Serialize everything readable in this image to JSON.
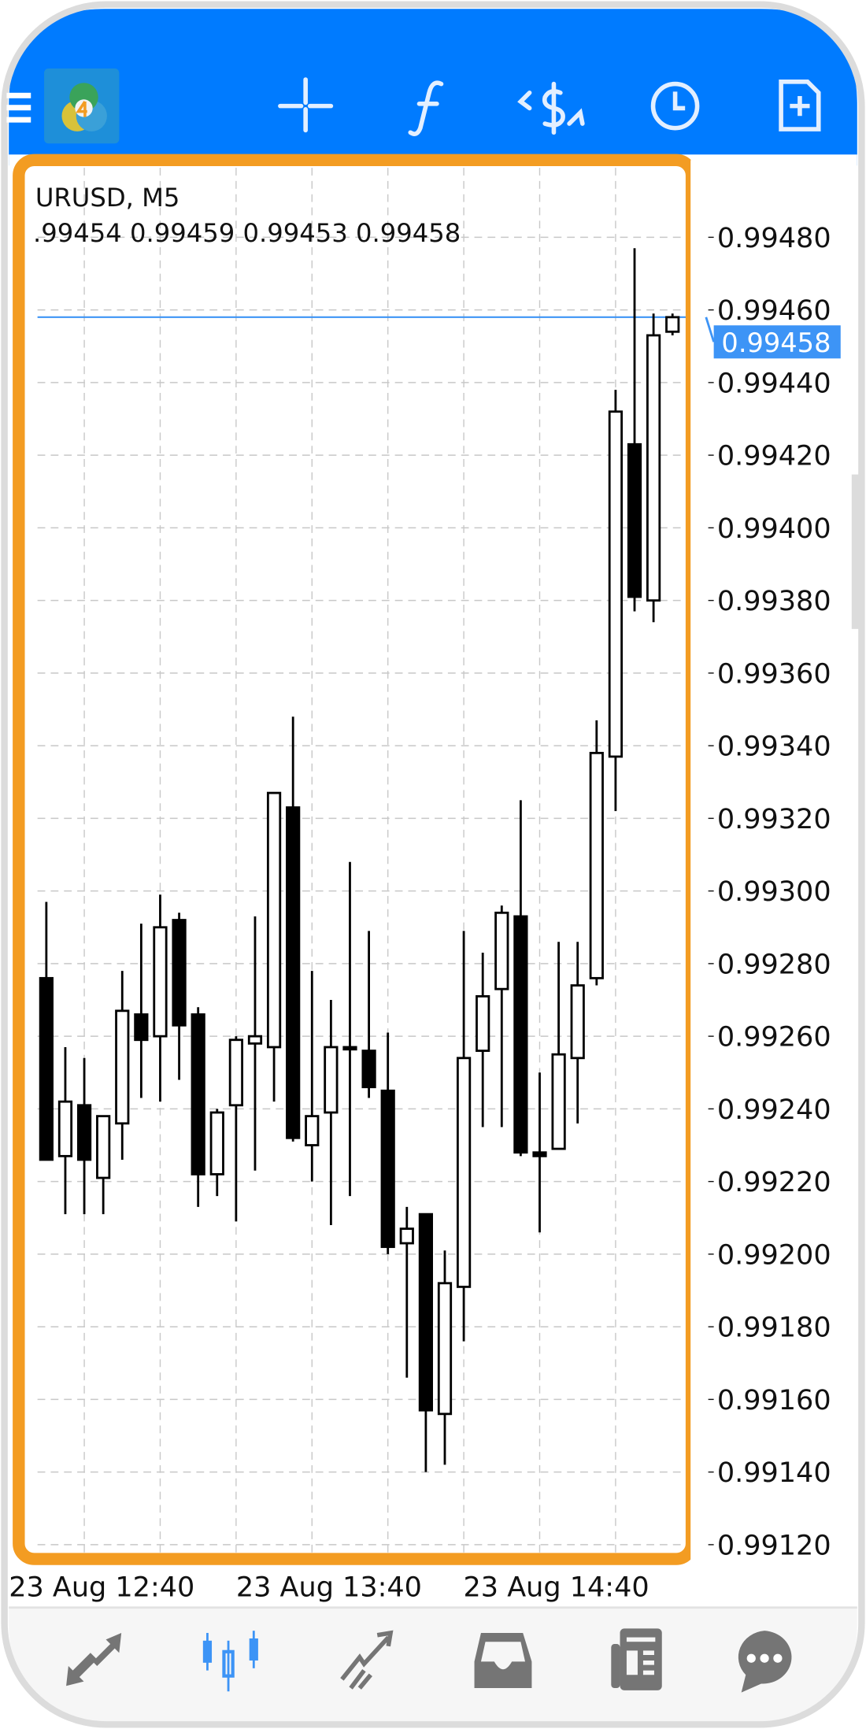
{
  "toolbar": {
    "icons": [
      "menu-icon",
      "app-logo",
      "crosshair-icon",
      "indicators-icon",
      "trade-icon",
      "timeframe-icon",
      "new-order-icon"
    ],
    "background": "#007bff"
  },
  "chart": {
    "symbol_label": "URUSD, M5",
    "ohlc_label": ".99454 0.99459 0.99453 0.99458",
    "current_price": "0.99458",
    "current_price_value": 0.99458,
    "highlight_color": "#f39c22",
    "price_line_color": "#3d94f6"
  },
  "chart_data": {
    "type": "candlestick",
    "y_ticks": [
      "0.99480",
      "0.99460",
      "0.99440",
      "0.99420",
      "0.99400",
      "0.99380",
      "0.99360",
      "0.99340",
      "0.99320",
      "0.99300",
      "0.99280",
      "0.99260",
      "0.99240",
      "0.99220",
      "0.99200",
      "0.99180",
      "0.99160",
      "0.99140",
      "0.99120"
    ],
    "ylim": [
      0.9912,
      0.9948
    ],
    "x_ticks": [
      "23 Aug 12:40",
      "23 Aug 13:40",
      "23 Aug 14:40"
    ],
    "grid": true,
    "candles": [
      {
        "o": 0.99276,
        "h": 0.99297,
        "l": 0.99226,
        "c": 0.99226
      },
      {
        "o": 0.99227,
        "h": 0.99257,
        "l": 0.99211,
        "c": 0.99242
      },
      {
        "o": 0.99241,
        "h": 0.99254,
        "l": 0.99211,
        "c": 0.99226
      },
      {
        "o": 0.99221,
        "h": 0.99238,
        "l": 0.99211,
        "c": 0.99238
      },
      {
        "o": 0.99236,
        "h": 0.99278,
        "l": 0.99226,
        "c": 0.99267
      },
      {
        "o": 0.99266,
        "h": 0.99291,
        "l": 0.99243,
        "c": 0.99259
      },
      {
        "o": 0.9926,
        "h": 0.99299,
        "l": 0.99242,
        "c": 0.9929
      },
      {
        "o": 0.99292,
        "h": 0.99294,
        "l": 0.99248,
        "c": 0.99263
      },
      {
        "o": 0.99266,
        "h": 0.99268,
        "l": 0.99213,
        "c": 0.99222
      },
      {
        "o": 0.99222,
        "h": 0.9924,
        "l": 0.99216,
        "c": 0.99239
      },
      {
        "o": 0.99241,
        "h": 0.9926,
        "l": 0.99209,
        "c": 0.99259
      },
      {
        "o": 0.99258,
        "h": 0.99293,
        "l": 0.99223,
        "c": 0.9926
      },
      {
        "o": 0.99257,
        "h": 0.99327,
        "l": 0.99242,
        "c": 0.99327
      },
      {
        "o": 0.99323,
        "h": 0.99348,
        "l": 0.99231,
        "c": 0.99232
      },
      {
        "o": 0.9923,
        "h": 0.99278,
        "l": 0.9922,
        "c": 0.99238
      },
      {
        "o": 0.99239,
        "h": 0.9927,
        "l": 0.99208,
        "c": 0.99257
      },
      {
        "o": 0.99257,
        "h": 0.99308,
        "l": 0.99216,
        "c": 0.99257
      },
      {
        "o": 0.99256,
        "h": 0.99289,
        "l": 0.99243,
        "c": 0.99246
      },
      {
        "o": 0.99245,
        "h": 0.99261,
        "l": 0.992,
        "c": 0.99202
      },
      {
        "o": 0.99203,
        "h": 0.99213,
        "l": 0.99166,
        "c": 0.99207
      },
      {
        "o": 0.99211,
        "h": 0.99211,
        "l": 0.9914,
        "c": 0.99157
      },
      {
        "o": 0.99156,
        "h": 0.99201,
        "l": 0.99142,
        "c": 0.99192
      },
      {
        "o": 0.99191,
        "h": 0.99289,
        "l": 0.99176,
        "c": 0.99254
      },
      {
        "o": 0.99256,
        "h": 0.99283,
        "l": 0.99235,
        "c": 0.99271
      },
      {
        "o": 0.99273,
        "h": 0.99296,
        "l": 0.99235,
        "c": 0.99294
      },
      {
        "o": 0.99293,
        "h": 0.99325,
        "l": 0.99227,
        "c": 0.99228
      },
      {
        "o": 0.99228,
        "h": 0.9925,
        "l": 0.99206,
        "c": 0.99227
      },
      {
        "o": 0.99229,
        "h": 0.99286,
        "l": 0.99229,
        "c": 0.99255
      },
      {
        "o": 0.99254,
        "h": 0.99286,
        "l": 0.99236,
        "c": 0.99274
      },
      {
        "o": 0.99276,
        "h": 0.99347,
        "l": 0.99274,
        "c": 0.99338
      },
      {
        "o": 0.99337,
        "h": 0.99438,
        "l": 0.99322,
        "c": 0.99432
      },
      {
        "o": 0.99423,
        "h": 0.99477,
        "l": 0.99377,
        "c": 0.99381
      },
      {
        "o": 0.9938,
        "h": 0.99459,
        "l": 0.99374,
        "c": 0.99453
      },
      {
        "o": 0.99454,
        "h": 0.99459,
        "l": 0.99453,
        "c": 0.99458
      }
    ]
  },
  "bottom_nav": {
    "items": [
      "quotes-icon",
      "chart-icon",
      "trade-icon",
      "history-icon",
      "news-icon",
      "messages-icon"
    ],
    "active": "chart-icon",
    "active_color": "#3d94f6",
    "inactive_color": "#757575"
  }
}
